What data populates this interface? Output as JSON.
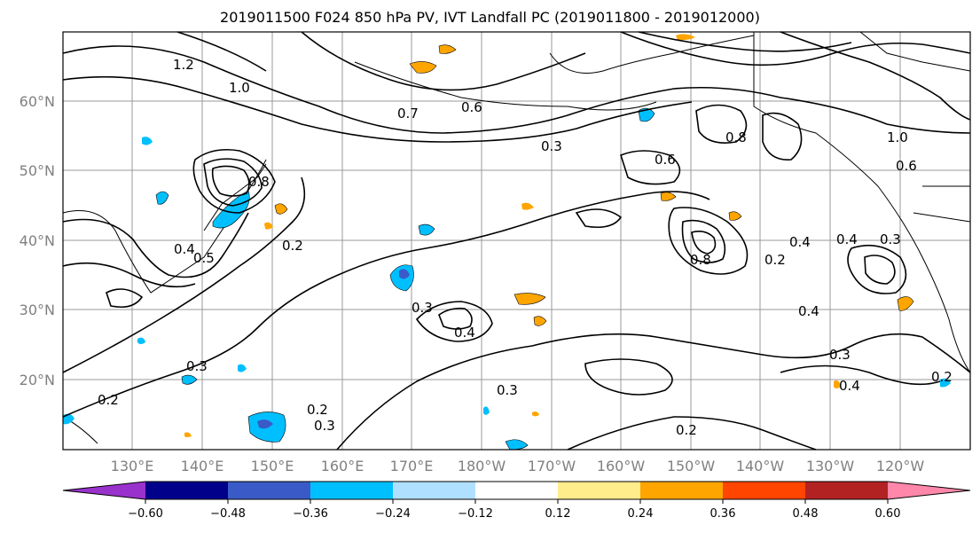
{
  "title": "2019011500 F024 850 hPa PV, IVT Landfall PC (2019011800 - 2019012000)",
  "map": {
    "lat_ticks": [
      "60°N",
      "50°N",
      "40°N",
      "30°N",
      "20°N"
    ],
    "lon_ticks": [
      "130°E",
      "140°E",
      "150°E",
      "160°E",
      "170°E",
      "180°W",
      "170°W",
      "160°W",
      "150°W",
      "140°W",
      "130°W",
      "120°W"
    ],
    "contour_labels": [
      "1.2",
      "1.0",
      "0.8",
      "0.7",
      "0.6",
      "0.5",
      "0.4",
      "0.3",
      "0.2",
      "0.3",
      "0.4",
      "0.2",
      "0.3",
      "0.4",
      "0.3",
      "0.2",
      "0.3",
      "0.4",
      "0.8",
      "0.6",
      "0.2",
      "0.4",
      "0.3",
      "0.4",
      "0.2",
      "0.3",
      "0.2",
      "1.0",
      "0.6",
      "0.8"
    ]
  },
  "colorbar": {
    "tick_labels": [
      "−0.60",
      "−0.48",
      "−0.36",
      "−0.24",
      "−0.12",
      "0.12",
      "0.24",
      "0.36",
      "0.48",
      "0.60"
    ],
    "colors": [
      "#9932cc",
      "#00008b",
      "#3a5bc7",
      "#00bfff",
      "#b0e0ff",
      "#ffffff",
      "#ffec8b",
      "#ffa500",
      "#ff4500",
      "#b22222",
      "#ff88aa"
    ]
  }
}
